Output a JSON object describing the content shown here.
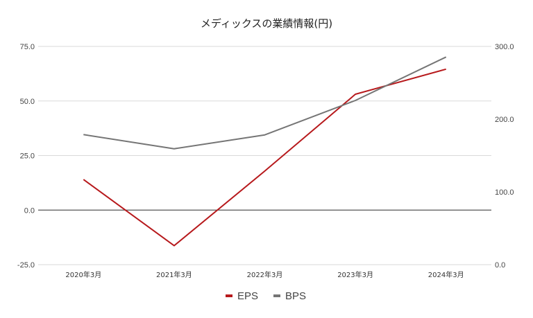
{
  "chart_data": {
    "type": "line",
    "title": "メディックスの業績情報(円)",
    "categories": [
      "2020年3月",
      "2021年3月",
      "2022年3月",
      "2023年3月",
      "2024年3月"
    ],
    "series": [
      {
        "name": "EPS",
        "axis": "left",
        "color": "#b7191c",
        "values": [
          14.0,
          -16.3,
          17.9,
          53.1,
          64.6
        ]
      },
      {
        "name": "BPS",
        "axis": "right",
        "color": "#757575",
        "values": [
          178.8,
          159.3,
          178.4,
          225.7,
          285.4
        ]
      }
    ],
    "left_axis": {
      "ylim": [
        -25,
        75
      ],
      "ticks": [
        "75.0",
        "50.0",
        "25.0",
        "0.0",
        "-25.0"
      ],
      "tick_values": [
        75,
        50,
        25,
        0,
        -25
      ]
    },
    "right_axis": {
      "ylim": [
        0,
        300
      ],
      "ticks": [
        "300.0",
        "200.0",
        "100.0",
        "0.0"
      ],
      "tick_values": [
        300,
        200,
        100,
        0
      ]
    },
    "xlabel": "",
    "ylabel": "",
    "grid": true,
    "legend_position": "bottom"
  },
  "legend": [
    {
      "label": "EPS",
      "color": "#b7191c"
    },
    {
      "label": "BPS",
      "color": "#757575"
    }
  ]
}
